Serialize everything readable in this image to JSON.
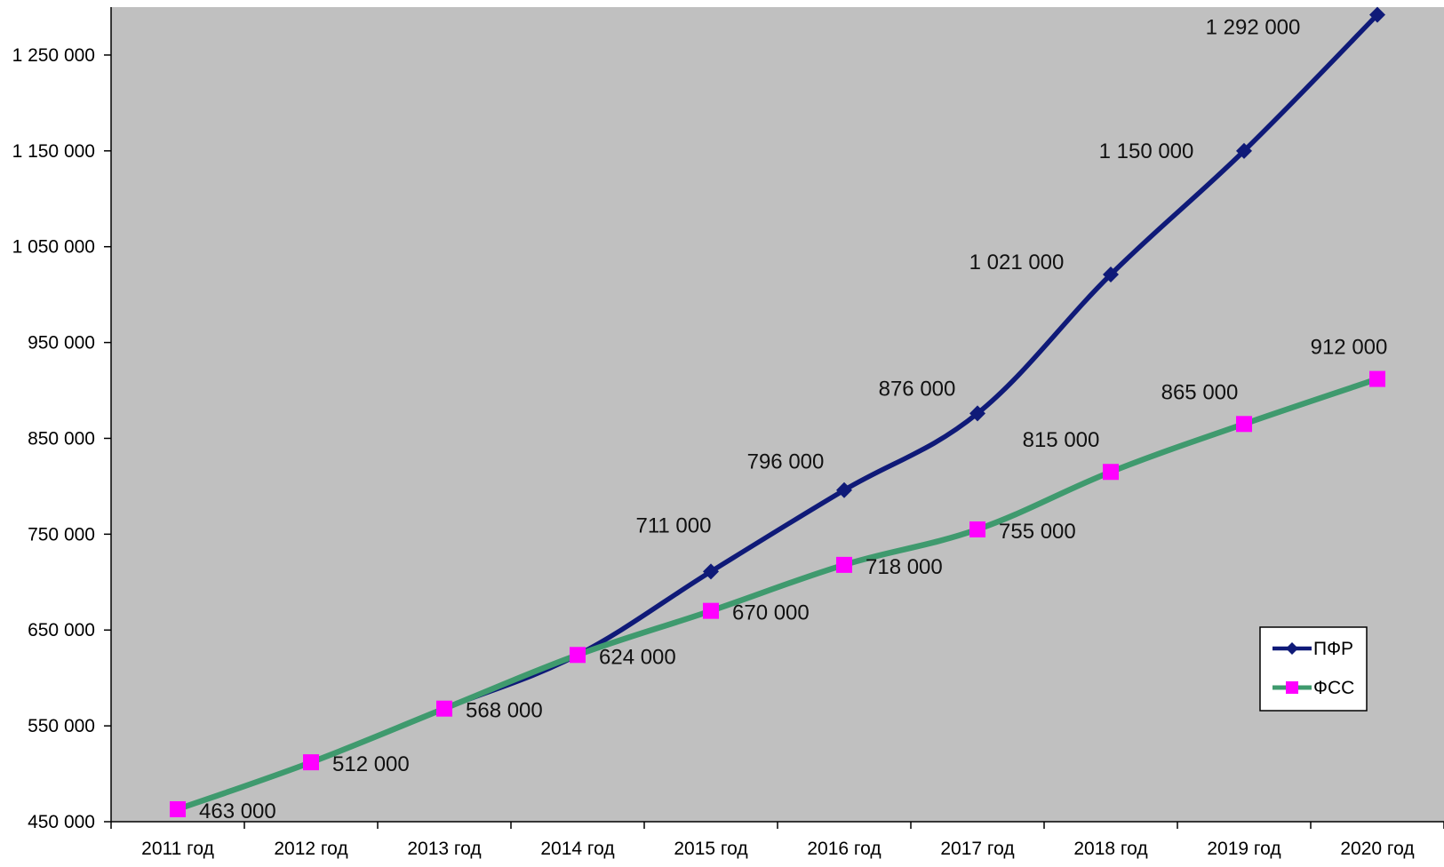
{
  "chart_data": {
    "type": "line",
    "title": "",
    "xlabel": "",
    "ylabel": "",
    "categories": [
      "2011 год",
      "2012 год",
      "2013 год",
      "2014 год",
      "2015 год",
      "2016 год",
      "2017 год",
      "2018 год",
      "2019 год",
      "2020 год"
    ],
    "ylim": [
      450000,
      1300000
    ],
    "yticks": [
      450000,
      550000,
      650000,
      750000,
      850000,
      950000,
      1050000,
      1150000,
      1250000
    ],
    "ytick_labels": [
      "450 000",
      "550 000",
      "650 000",
      "750 000",
      "850 000",
      "950 000",
      "1 050 000",
      "1 150 000",
      "1 250 000"
    ],
    "grid": false,
    "legend_position": "bottom-right",
    "plot_background": "#c0c0c0",
    "series": [
      {
        "name": "ПФР",
        "color": "#0f1a78",
        "marker": "diamond",
        "values": [
          463000,
          512000,
          568000,
          624000,
          711000,
          796000,
          876000,
          1021000,
          1150000,
          1292000
        ],
        "labels": [
          "",
          "",
          "",
          "",
          "711 000",
          "796 000",
          "876 000",
          "1 021 000",
          "1 150 000",
          "1 292 000"
        ]
      },
      {
        "name": "ФСС",
        "color": "#3f9a6e",
        "marker": "square",
        "marker_color": "#ff00ff",
        "values": [
          463000,
          512000,
          568000,
          624000,
          670000,
          718000,
          755000,
          815000,
          865000,
          912000
        ],
        "labels": [
          "463 000",
          "512 000",
          "568 000",
          "624 000",
          "670 000",
          "718 000",
          "755 000",
          "815 000",
          "865 000",
          "912 000"
        ]
      }
    ]
  }
}
